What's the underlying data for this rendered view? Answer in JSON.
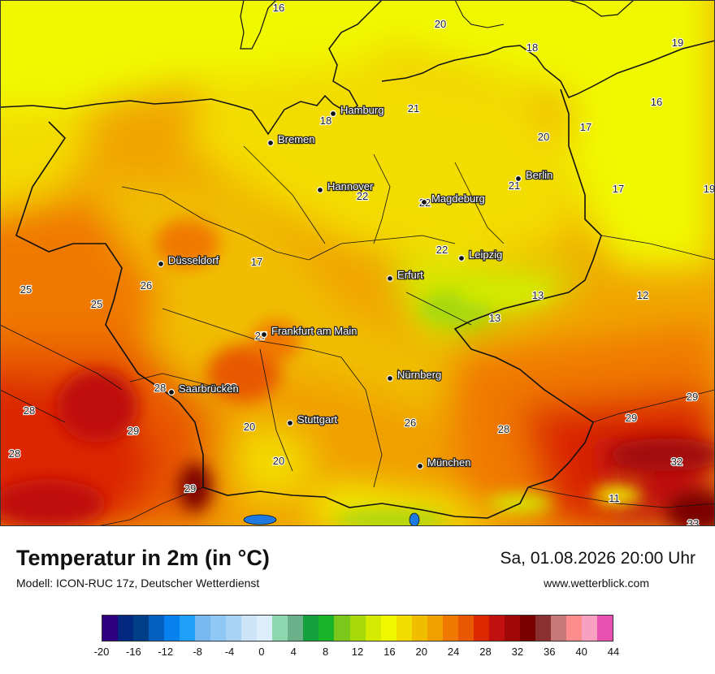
{
  "map": {
    "cities": [
      {
        "name": "Hamburg"
      },
      {
        "name": "Bremen"
      },
      {
        "name": "Hannover"
      },
      {
        "name": "Berlin"
      },
      {
        "name": "Magdeburg"
      },
      {
        "name": "Düsseldorf"
      },
      {
        "name": "Leipzig"
      },
      {
        "name": "Erfurt"
      },
      {
        "name": "Frankfurt am Main"
      },
      {
        "name": "Nürnberg"
      },
      {
        "name": "Saarbrücken"
      },
      {
        "name": "Stuttgart"
      },
      {
        "name": "München"
      }
    ],
    "values": [
      "16",
      "20",
      "18",
      "19",
      "16",
      "21",
      "18",
      "20",
      "17",
      "21",
      "17",
      "19",
      "22",
      "22",
      "22",
      "17",
      "25",
      "26",
      "25",
      "13",
      "12",
      "13",
      "27",
      "28",
      "22",
      "28",
      "29",
      "20",
      "26",
      "28",
      "29",
      "29",
      "28",
      "20",
      "32",
      "29",
      "11",
      "33"
    ]
  },
  "footer": {
    "title": "Temperatur in 2m (in °C)",
    "subtitle": "Modell: ICON-RUC 17z, Deutscher Wetterdienst",
    "datetime": "Sa, 01.08.2026 20:00 Uhr",
    "website": "www.wetterblick.com"
  },
  "legend": {
    "colors": [
      "#2e007f",
      "#03287f",
      "#003f87",
      "#0460c0",
      "#0681ee",
      "#1ea0f8",
      "#78b8f0",
      "#8fc8f5",
      "#a8d3f5",
      "#cce3f8",
      "#dceefc",
      "#8ed8b0",
      "#6cb08a",
      "#14a03c",
      "#1ab428",
      "#7cc81a",
      "#a6d80a",
      "#d4ea00",
      "#f0f800",
      "#f3dc00",
      "#f0bd00",
      "#f0a000",
      "#f07800",
      "#e85800",
      "#dc2800",
      "#c01010",
      "#a00808",
      "#7a0000",
      "#8a3030",
      "#c87878",
      "#ff8c8c",
      "#f8a0c0",
      "#e850b0"
    ],
    "ticks": [
      "-20",
      "-16",
      "-12",
      "-8",
      "-4",
      "0",
      "4",
      "8",
      "12",
      "16",
      "20",
      "24",
      "28",
      "32",
      "36",
      "40",
      "44"
    ]
  }
}
